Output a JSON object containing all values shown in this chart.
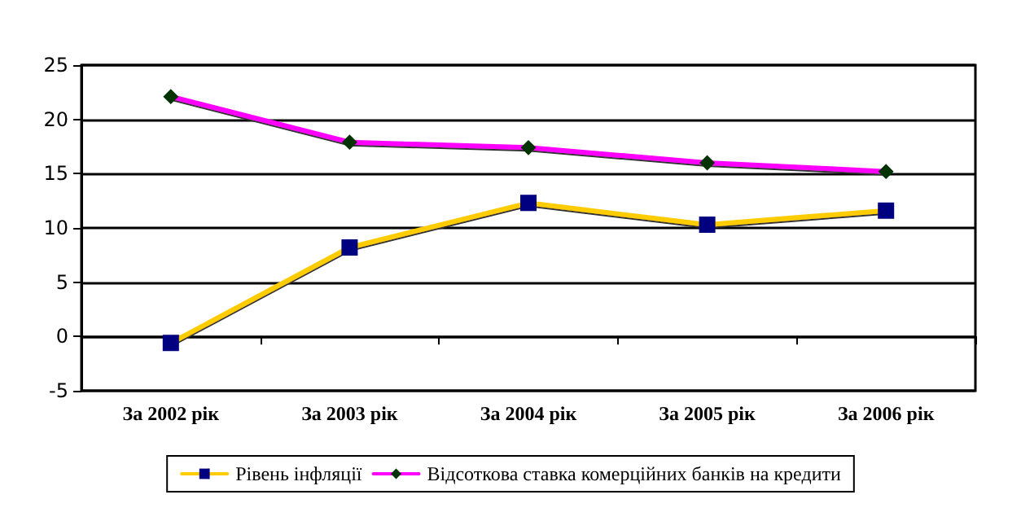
{
  "chart_data": {
    "type": "line",
    "categories": [
      "За 2002 рік",
      "За 2003 рік",
      "За 2004 рік",
      "За 2005 рік",
      "За 2006 рік"
    ],
    "series": [
      {
        "name": "Рівень інфляції",
        "color": "#ffcc00",
        "marker": "square",
        "values": [
          -0.6,
          8.2,
          12.3,
          10.3,
          11.6
        ]
      },
      {
        "name": "Відсоткова ставка комерційних банків на кредити",
        "color": "#ff00ff",
        "marker": "diamond",
        "values": [
          22.1,
          17.9,
          17.4,
          16.0,
          15.2
        ]
      }
    ],
    "ylim": [
      -5,
      25
    ],
    "yticks": [
      -5,
      0,
      5,
      10,
      15,
      20,
      25
    ],
    "grid": "y",
    "legend": "bottom",
    "line_style": "solid"
  }
}
